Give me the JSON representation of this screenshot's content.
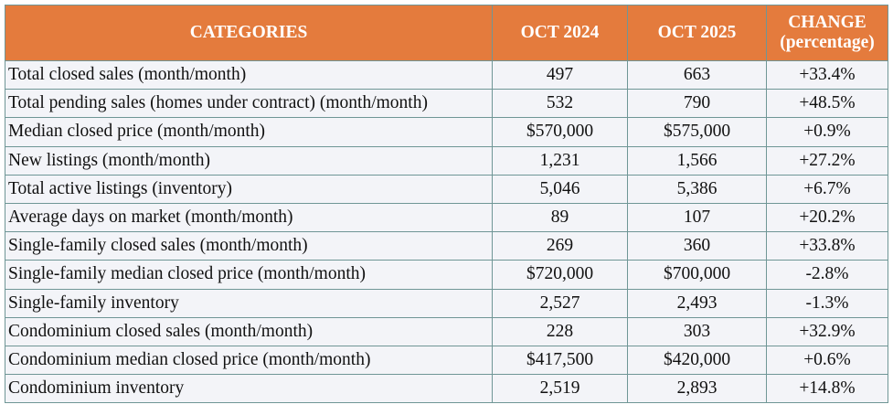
{
  "table": {
    "header": [
      "CATEGORIES",
      "OCT 2024",
      "OCT 2025",
      "CHANGE (percentage)"
    ],
    "rows": [
      [
        "Total closed sales (month/month)",
        "497",
        "663",
        "+33.4%"
      ],
      [
        "Total pending sales (homes under contract) (month/month)",
        "532",
        "790",
        "+48.5%"
      ],
      [
        "Median closed price (month/month)",
        "$570,000",
        "$575,000",
        "+0.9%"
      ],
      [
        "New listings (month/month)",
        "1,231",
        "1,566",
        "+27.2%"
      ],
      [
        "Total active listings (inventory)",
        "5,046",
        "5,386",
        "+6.7%"
      ],
      [
        "Average days on market (month/month)",
        "89",
        "107",
        "+20.2%"
      ],
      [
        "Single-family closed sales (month/month)",
        "269",
        "360",
        "+33.8%"
      ],
      [
        "Single-family median closed price (month/month)",
        "$720,000",
        "$700,000",
        "-2.8%"
      ],
      [
        "Single-family inventory",
        "2,527",
        "2,493",
        "-1.3%"
      ],
      [
        "Condominium closed sales (month/month)",
        "228",
        "303",
        "+32.9%"
      ],
      [
        "Condominium median closed price (month/month)",
        "$417,500",
        "$420,000",
        "+0.6%"
      ],
      [
        "Condominium inventory",
        "2,519",
        "2,893",
        "+14.8%"
      ]
    ]
  }
}
